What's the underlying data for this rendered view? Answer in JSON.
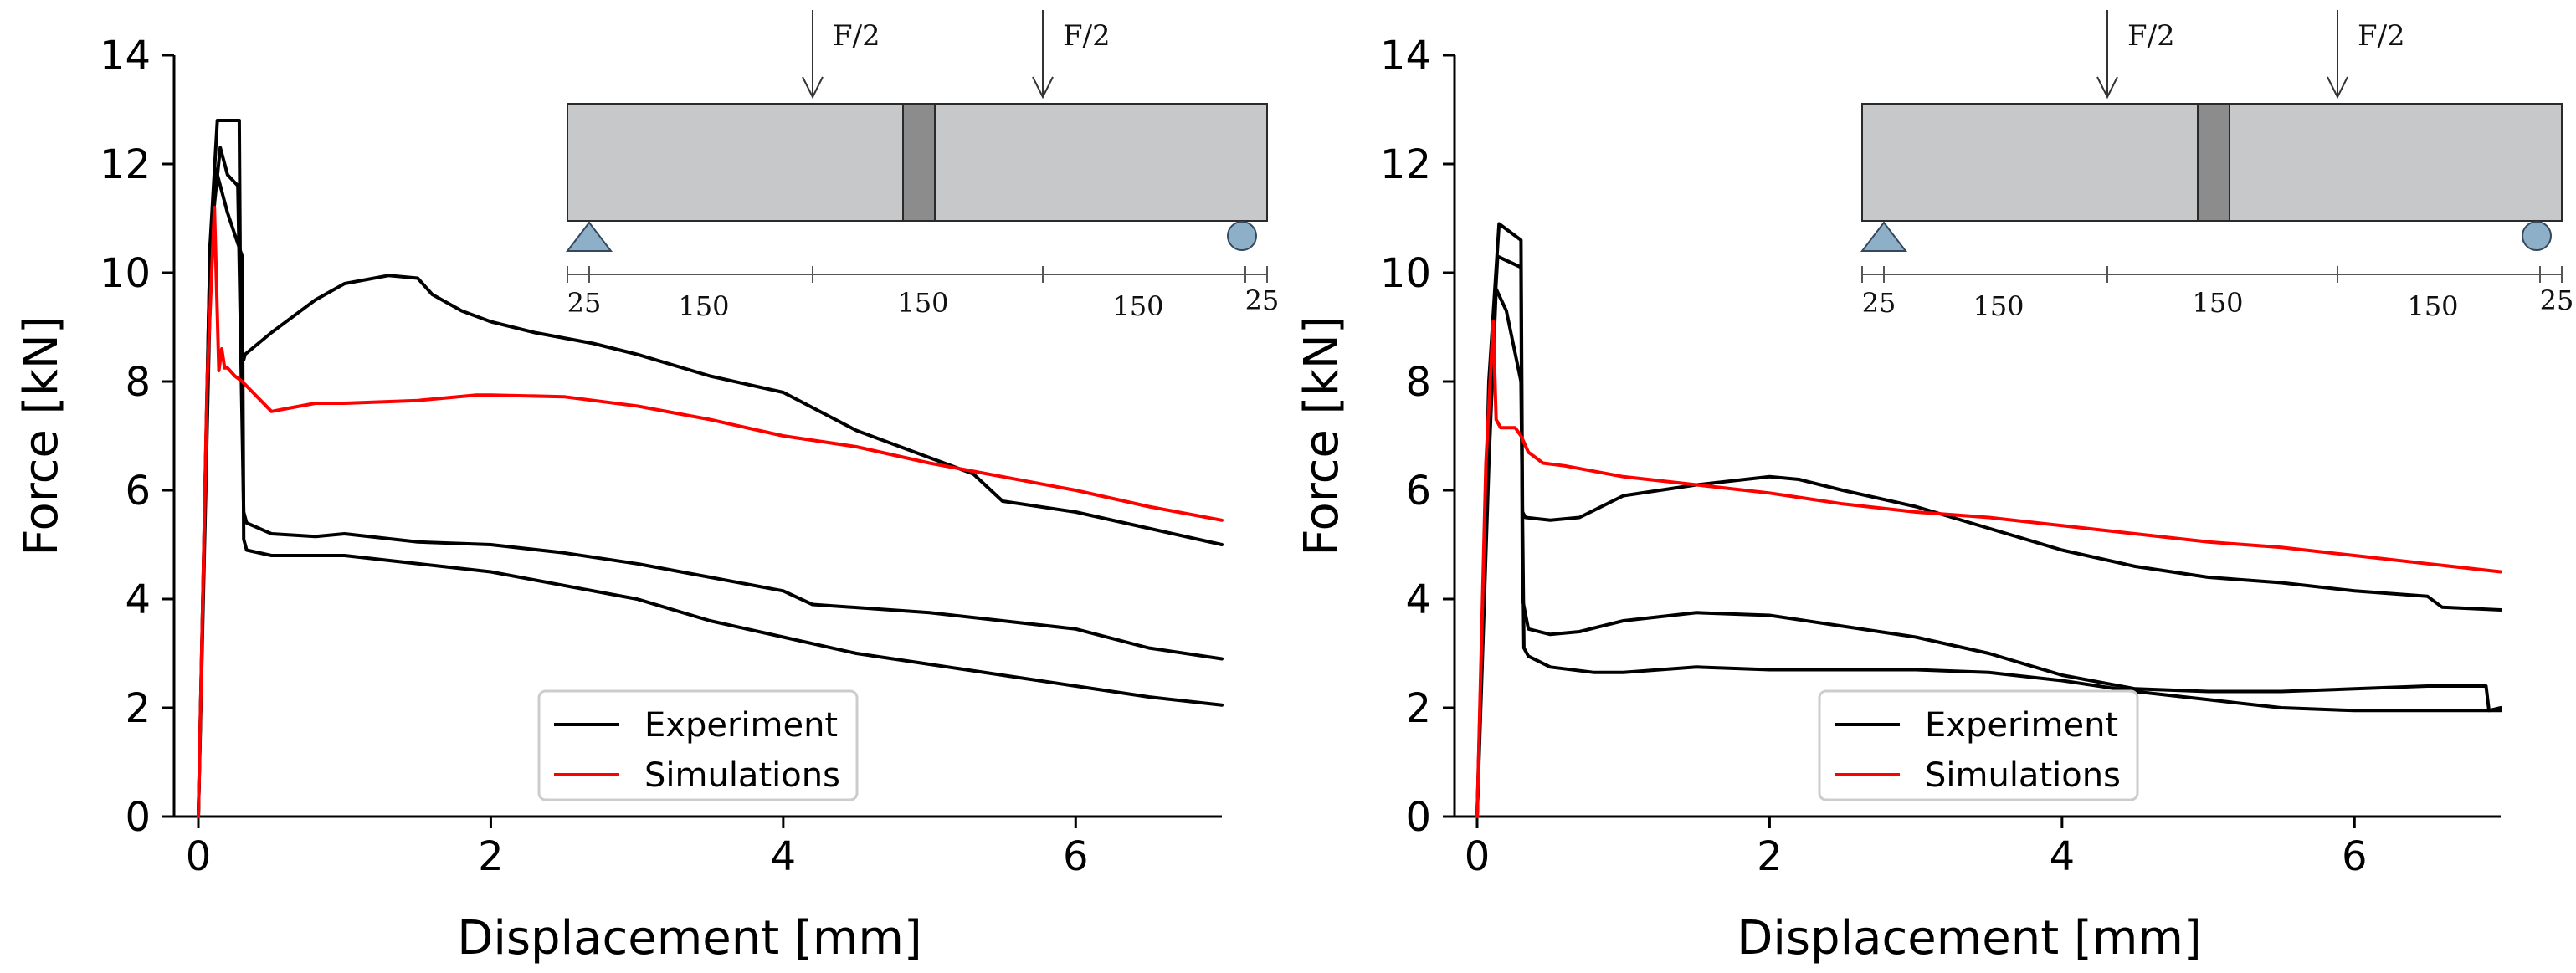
{
  "chart_data": [
    {
      "type": "line",
      "panel": "left",
      "xlabel": "Displacement [mm]",
      "ylabel": "Force [kN]",
      "xlim": [
        -0.2,
        7.0
      ],
      "ylim": [
        0,
        14
      ],
      "xticks": [
        0,
        2,
        4,
        6
      ],
      "yticks": [
        0,
        2,
        4,
        6,
        8,
        10,
        12,
        14
      ],
      "grid": false,
      "legend_position": "bottom-center",
      "legend": [
        {
          "label": "Experiment",
          "color": "#000000"
        },
        {
          "label": "Simulations",
          "color": "#ff0000"
        }
      ],
      "series": [
        {
          "name": "Experiment",
          "color": "#000000",
          "x": [
            0,
            0.08,
            0.13,
            0.28,
            0.29,
            0.31,
            0.32,
            0.5,
            0.8,
            1.0,
            1.3,
            1.5,
            1.6,
            1.8,
            2.0,
            2.3,
            2.7,
            3.0,
            3.5,
            4.0,
            4.5,
            5.0,
            5.3,
            5.5,
            6.0,
            6.5,
            7.0
          ],
          "y": [
            0,
            10.5,
            12.8,
            12.8,
            8.6,
            8.4,
            8.5,
            8.9,
            9.5,
            9.8,
            9.95,
            9.9,
            9.6,
            9.3,
            9.1,
            8.9,
            8.7,
            8.5,
            8.1,
            7.8,
            7.1,
            6.6,
            6.3,
            5.8,
            5.6,
            5.3,
            5.0
          ]
        },
        {
          "name": "Experiment",
          "color": "#000000",
          "x": [
            0,
            0.08,
            0.15,
            0.2,
            0.27,
            0.31,
            0.33,
            0.5,
            0.8,
            1.0,
            1.5,
            2.0,
            2.5,
            3.0,
            3.5,
            4.0,
            4.2,
            5.0,
            5.5,
            6.0,
            6.5,
            7.0
          ],
          "y": [
            0,
            10.5,
            12.3,
            11.8,
            11.6,
            5.6,
            5.4,
            5.2,
            5.15,
            5.2,
            5.05,
            5.0,
            4.85,
            4.65,
            4.4,
            4.15,
            3.9,
            3.75,
            3.6,
            3.45,
            3.1,
            2.9
          ]
        },
        {
          "name": "Experiment",
          "color": "#000000",
          "x": [
            0,
            0.08,
            0.12,
            0.2,
            0.3,
            0.31,
            0.33,
            0.5,
            1.0,
            1.5,
            2.0,
            2.5,
            3.0,
            3.5,
            4.0,
            4.5,
            5.0,
            5.5,
            6.0,
            6.5,
            7.0
          ],
          "y": [
            0,
            9.5,
            11.9,
            11.1,
            10.3,
            5.1,
            4.9,
            4.8,
            4.8,
            4.65,
            4.5,
            4.25,
            4.0,
            3.6,
            3.3,
            3.0,
            2.8,
            2.6,
            2.4,
            2.2,
            2.05
          ]
        },
        {
          "name": "Simulations",
          "color": "#ff0000",
          "x": [
            0,
            0.06,
            0.11,
            0.14,
            0.16,
            0.18,
            0.2,
            0.25,
            0.3,
            0.5,
            0.6,
            0.8,
            1.0,
            1.5,
            1.9,
            2.0,
            2.5,
            3.0,
            3.5,
            4.0,
            4.5,
            5.0,
            5.5,
            6.0,
            6.5,
            7.0
          ],
          "y": [
            0,
            8.0,
            11.2,
            8.2,
            8.6,
            8.25,
            8.25,
            8.1,
            8.0,
            7.45,
            7.5,
            7.6,
            7.6,
            7.65,
            7.75,
            7.75,
            7.72,
            7.55,
            7.3,
            7.0,
            6.8,
            6.5,
            6.25,
            6.0,
            5.7,
            5.45
          ]
        }
      ],
      "inset": {
        "load_labels": [
          "F/2",
          "F/2"
        ],
        "dimension_labels": [
          "25",
          "150",
          "150",
          "150",
          "25"
        ]
      }
    },
    {
      "type": "line",
      "panel": "right",
      "xlabel": "Displacement [mm]",
      "ylabel": "Force [kN]",
      "xlim": [
        -0.2,
        7.0
      ],
      "ylim": [
        0,
        14
      ],
      "xticks": [
        0,
        2,
        4,
        6
      ],
      "yticks": [
        0,
        2,
        4,
        6,
        8,
        10,
        12,
        14
      ],
      "grid": false,
      "legend_position": "bottom-center",
      "legend": [
        {
          "label": "Experiment",
          "color": "#000000"
        },
        {
          "label": "Simulations",
          "color": "#ff0000"
        }
      ],
      "series": [
        {
          "name": "Experiment",
          "color": "#000000",
          "x": [
            0,
            0.08,
            0.15,
            0.3,
            0.31,
            0.33,
            0.5,
            0.7,
            1.0,
            1.5,
            2.0,
            2.2,
            2.5,
            3.0,
            3.5,
            4.0,
            4.5,
            5.0,
            5.5,
            6.0,
            6.5,
            6.6,
            7.0
          ],
          "y": [
            0,
            8.0,
            10.9,
            10.6,
            5.6,
            5.5,
            5.45,
            5.5,
            5.9,
            6.1,
            6.25,
            6.2,
            6.0,
            5.7,
            5.3,
            4.9,
            4.6,
            4.4,
            4.3,
            4.15,
            4.05,
            3.85,
            3.8
          ]
        },
        {
          "name": "Experiment",
          "color": "#000000",
          "x": [
            0,
            0.08,
            0.14,
            0.3,
            0.31,
            0.35,
            0.5,
            0.7,
            1.0,
            1.5,
            2.0,
            2.5,
            3.0,
            3.5,
            4.0,
            4.5,
            5.0,
            5.5,
            6.0,
            6.5,
            6.9,
            6.92,
            7.0
          ],
          "y": [
            0,
            7.5,
            10.3,
            10.1,
            4.0,
            3.45,
            3.35,
            3.4,
            3.6,
            3.75,
            3.7,
            3.5,
            3.3,
            3.0,
            2.6,
            2.35,
            2.3,
            2.3,
            2.35,
            2.4,
            2.4,
            1.95,
            2.0
          ]
        },
        {
          "name": "Experiment",
          "color": "#000000",
          "x": [
            0,
            0.08,
            0.13,
            0.2,
            0.3,
            0.32,
            0.35,
            0.5,
            0.8,
            1.0,
            1.5,
            2.0,
            3.0,
            3.5,
            4.0,
            4.5,
            5.0,
            5.5,
            6.0,
            6.5,
            7.0
          ],
          "y": [
            0,
            6.5,
            9.7,
            9.3,
            8.0,
            3.1,
            2.95,
            2.75,
            2.65,
            2.65,
            2.75,
            2.7,
            2.7,
            2.65,
            2.5,
            2.3,
            2.15,
            2.0,
            1.95,
            1.95,
            1.95
          ]
        },
        {
          "name": "Simulations",
          "color": "#ff0000",
          "x": [
            0,
            0.06,
            0.11,
            0.13,
            0.16,
            0.2,
            0.26,
            0.3,
            0.35,
            0.45,
            0.6,
            0.8,
            1.0,
            1.5,
            2.0,
            2.5,
            3.0,
            3.5,
            4.0,
            4.5,
            5.0,
            5.5,
            6.0,
            6.5,
            7.0
          ],
          "y": [
            0,
            6.5,
            9.1,
            7.3,
            7.15,
            7.15,
            7.15,
            7.0,
            6.7,
            6.5,
            6.45,
            6.35,
            6.25,
            6.1,
            5.95,
            5.75,
            5.6,
            5.5,
            5.35,
            5.2,
            5.05,
            4.95,
            4.8,
            4.65,
            4.5
          ]
        }
      ],
      "inset": {
        "load_labels": [
          "F/2",
          "F/2"
        ],
        "dimension_labels": [
          "25",
          "150",
          "150",
          "150",
          "25"
        ]
      }
    }
  ]
}
